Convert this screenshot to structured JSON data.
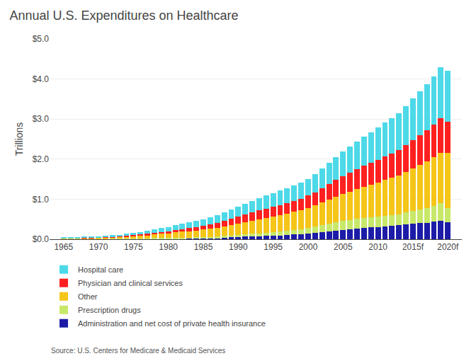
{
  "chart_data": {
    "type": "bar",
    "stacked": true,
    "title": "Annual U.S. Expenditures on Healthcare",
    "ylabel": "Trillions",
    "annotations": [
      "Source: U.S. Centers for Medicare & Medicaid Services"
    ],
    "x": [
      1965,
      1966,
      1967,
      1968,
      1969,
      1970,
      1971,
      1972,
      1973,
      1974,
      1975,
      1976,
      1977,
      1978,
      1979,
      1980,
      1981,
      1982,
      1983,
      1984,
      1985,
      1986,
      1987,
      1988,
      1989,
      1990,
      1991,
      1992,
      1993,
      1994,
      1995,
      1996,
      1997,
      1998,
      1999,
      2000,
      2001,
      2002,
      2003,
      2004,
      2005,
      2006,
      2007,
      2008,
      2009,
      2010,
      2011,
      2012,
      2013,
      2014,
      2015,
      2016,
      2017,
      2018,
      2019,
      2020
    ],
    "series": [
      {
        "name": "Administration and net cost of private health insurance",
        "color": "#1C1CA8",
        "values": [
          0.001,
          0.001,
          0.002,
          0.002,
          0.002,
          0.003,
          0.003,
          0.004,
          0.005,
          0.006,
          0.007,
          0.008,
          0.009,
          0.011,
          0.013,
          0.012,
          0.014,
          0.016,
          0.018,
          0.021,
          0.024,
          0.028,
          0.034,
          0.042,
          0.052,
          0.058,
          0.063,
          0.072,
          0.079,
          0.085,
          0.091,
          0.097,
          0.107,
          0.116,
          0.128,
          0.141,
          0.154,
          0.171,
          0.189,
          0.206,
          0.226,
          0.243,
          0.261,
          0.277,
          0.292,
          0.307,
          0.32,
          0.333,
          0.347,
          0.365,
          0.383,
          0.4,
          0.415,
          0.433,
          0.451,
          0.42
        ]
      },
      {
        "name": "Prescription drugs",
        "color": "#C8E86A",
        "values": [
          0.002,
          0.002,
          0.003,
          0.003,
          0.004,
          0.005,
          0.006,
          0.007,
          0.008,
          0.01,
          0.012,
          0.014,
          0.016,
          0.018,
          0.021,
          0.021,
          0.022,
          0.022,
          0.022,
          0.024,
          0.027,
          0.03,
          0.034,
          0.038,
          0.043,
          0.048,
          0.055,
          0.062,
          0.071,
          0.079,
          0.086,
          0.094,
          0.102,
          0.111,
          0.122,
          0.137,
          0.156,
          0.178,
          0.2,
          0.215,
          0.228,
          0.238,
          0.248,
          0.257,
          0.255,
          0.259,
          0.264,
          0.266,
          0.275,
          0.298,
          0.325,
          0.341,
          0.371,
          0.406,
          0.447,
          0.35
        ]
      },
      {
        "name": "Other",
        "color": "#F5C518",
        "values": [
          0.016,
          0.018,
          0.02,
          0.023,
          0.026,
          0.03,
          0.034,
          0.039,
          0.044,
          0.051,
          0.059,
          0.069,
          0.08,
          0.091,
          0.103,
          0.117,
          0.133,
          0.148,
          0.162,
          0.175,
          0.19,
          0.206,
          0.222,
          0.241,
          0.262,
          0.285,
          0.308,
          0.33,
          0.352,
          0.372,
          0.392,
          0.412,
          0.432,
          0.454,
          0.477,
          0.502,
          0.533,
          0.568,
          0.603,
          0.638,
          0.672,
          0.707,
          0.742,
          0.778,
          0.815,
          0.853,
          0.892,
          0.931,
          0.972,
          1.016,
          1.062,
          1.113,
          1.16,
          1.21,
          1.265,
          1.38
        ]
      },
      {
        "name": "Physician and clinical services",
        "color": "#FF2020",
        "values": [
          0.005,
          0.006,
          0.007,
          0.008,
          0.01,
          0.012,
          0.013,
          0.015,
          0.017,
          0.02,
          0.024,
          0.028,
          0.033,
          0.038,
          0.044,
          0.05,
          0.059,
          0.067,
          0.077,
          0.086,
          0.096,
          0.106,
          0.12,
          0.135,
          0.152,
          0.17,
          0.185,
          0.201,
          0.215,
          0.225,
          0.238,
          0.25,
          0.263,
          0.275,
          0.288,
          0.308,
          0.332,
          0.36,
          0.39,
          0.42,
          0.448,
          0.472,
          0.496,
          0.521,
          0.543,
          0.566,
          0.587,
          0.609,
          0.628,
          0.669,
          0.71,
          0.746,
          0.779,
          0.815,
          0.855,
          0.78
        ]
      },
      {
        "name": "Hospital care",
        "color": "#4DD9E8",
        "values": [
          0.013,
          0.015,
          0.018,
          0.021,
          0.024,
          0.028,
          0.031,
          0.035,
          0.04,
          0.047,
          0.055,
          0.064,
          0.073,
          0.083,
          0.094,
          0.102,
          0.118,
          0.136,
          0.149,
          0.157,
          0.163,
          0.174,
          0.188,
          0.207,
          0.226,
          0.25,
          0.272,
          0.296,
          0.315,
          0.33,
          0.347,
          0.36,
          0.375,
          0.39,
          0.402,
          0.415,
          0.447,
          0.487,
          0.525,
          0.565,
          0.611,
          0.648,
          0.694,
          0.722,
          0.761,
          0.814,
          0.851,
          0.882,
          0.924,
          0.971,
          1.036,
          1.101,
          1.142,
          1.191,
          1.271,
          1.27
        ]
      }
    ],
    "xlim": [
      1963,
      2022
    ],
    "xticks": [
      1965,
      1970,
      1975,
      1980,
      1985,
      1990,
      1995,
      2000,
      2005,
      2010,
      {
        "value": 2015,
        "label": "2015f"
      },
      {
        "value": 2020,
        "label": "2020f"
      }
    ],
    "ylim": [
      0,
      5.0
    ],
    "yticks": [
      {
        "value": 0.0,
        "label": "$0.0"
      },
      {
        "value": 1.0,
        "label": "$1.0"
      },
      {
        "value": 2.0,
        "label": "$2.0"
      },
      {
        "value": 3.0,
        "label": "$3.0"
      },
      {
        "value": 4.0,
        "label": "$4.0"
      },
      {
        "value": 5.0,
        "label": "$5.0"
      }
    ],
    "grid": true,
    "legend": "bottom"
  }
}
